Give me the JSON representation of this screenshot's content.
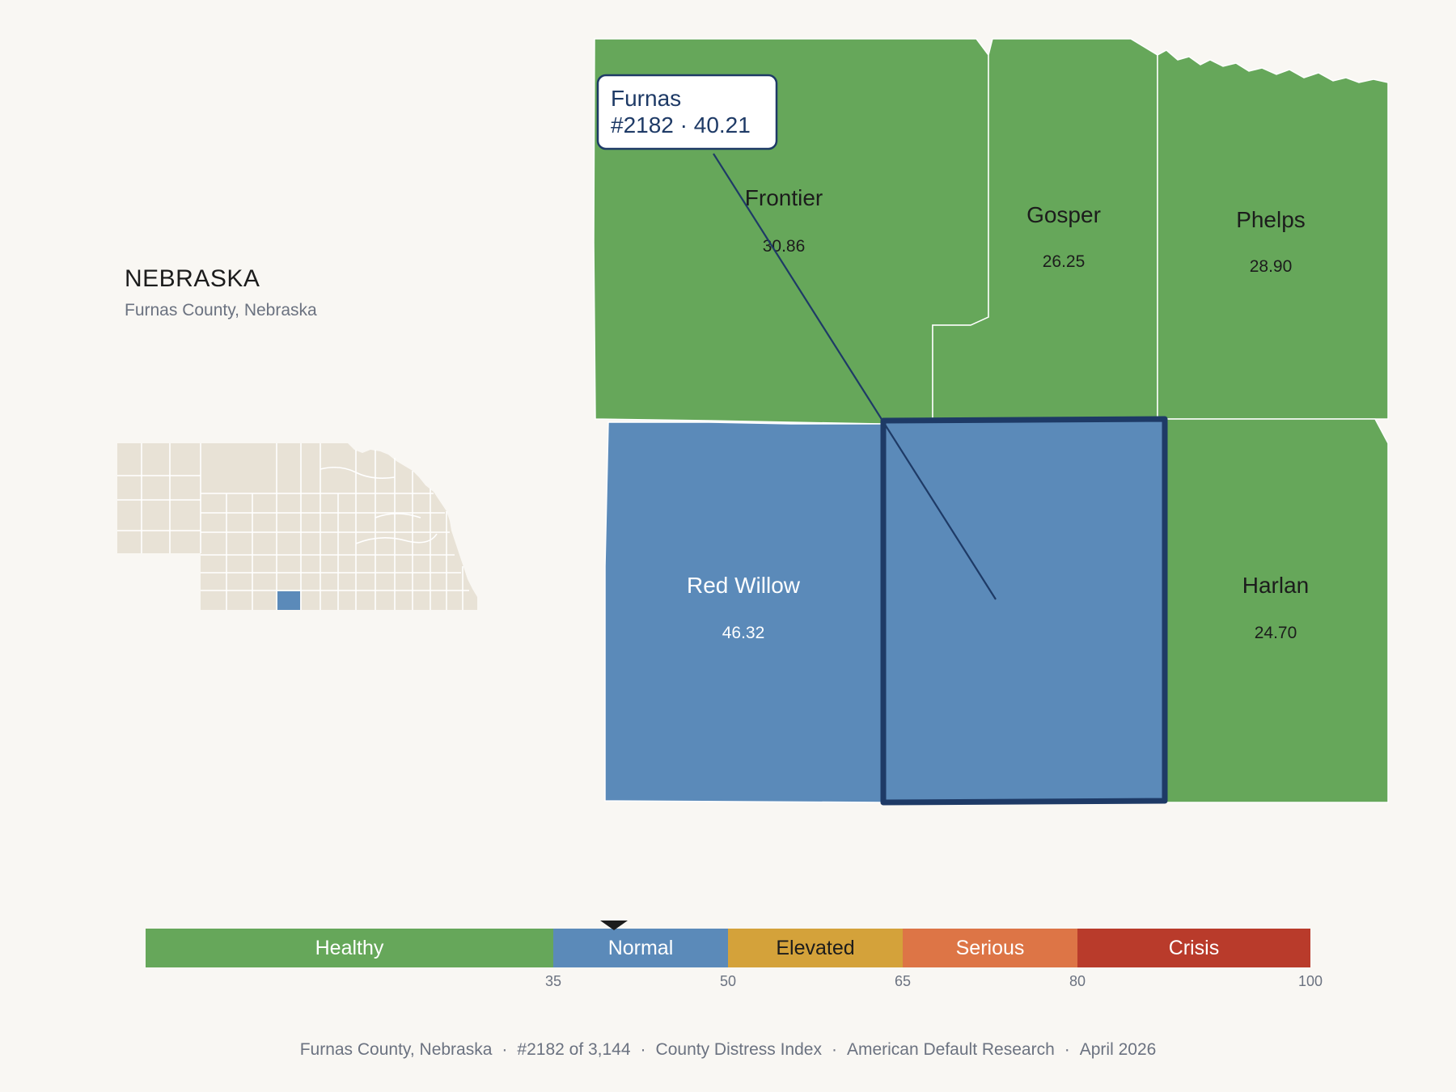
{
  "state": {
    "name": "NEBRASKA",
    "subtitle": "Furnas County, Nebraska"
  },
  "colors": {
    "healthy": "#66a75a",
    "normal": "#5b8ab9",
    "elevated": "#d4a23a",
    "serious": "#dd7546",
    "crisis": "#b93b2b",
    "highlight_outline": "#1e3a66",
    "inset_land": "#e8e2d6"
  },
  "counties": [
    {
      "name": "Frontier",
      "value": "30.86",
      "category": "healthy"
    },
    {
      "name": "Gosper",
      "value": "26.25",
      "category": "healthy"
    },
    {
      "name": "Phelps",
      "value": "28.90",
      "category": "healthy"
    },
    {
      "name": "Red Willow",
      "value": "46.32",
      "category": "normal"
    },
    {
      "name": "Furnas",
      "value": "",
      "category": "normal"
    },
    {
      "name": "Harlan",
      "value": "24.70",
      "category": "healthy"
    }
  ],
  "callout": {
    "line1": "Furnas",
    "line2": "#2182 · 40.21"
  },
  "scale": {
    "bands": [
      {
        "label": "Healthy",
        "from": 0,
        "to": 35,
        "category": "healthy"
      },
      {
        "label": "Normal",
        "from": 35,
        "to": 50,
        "category": "normal"
      },
      {
        "label": "Elevated",
        "from": 50,
        "to": 65,
        "category": "elevated"
      },
      {
        "label": "Serious",
        "from": 65,
        "to": 80,
        "category": "serious"
      },
      {
        "label": "Crisis",
        "from": 80,
        "to": 100,
        "category": "crisis"
      }
    ],
    "ticks": [
      "35",
      "50",
      "65",
      "80",
      "100"
    ],
    "marker_value": 40.21
  },
  "footer": {
    "county": "Furnas County, Nebraska",
    "rank": "#2182 of 3,144",
    "index": "County Distress Index",
    "source": "American Default Research",
    "date": "April 2026"
  }
}
